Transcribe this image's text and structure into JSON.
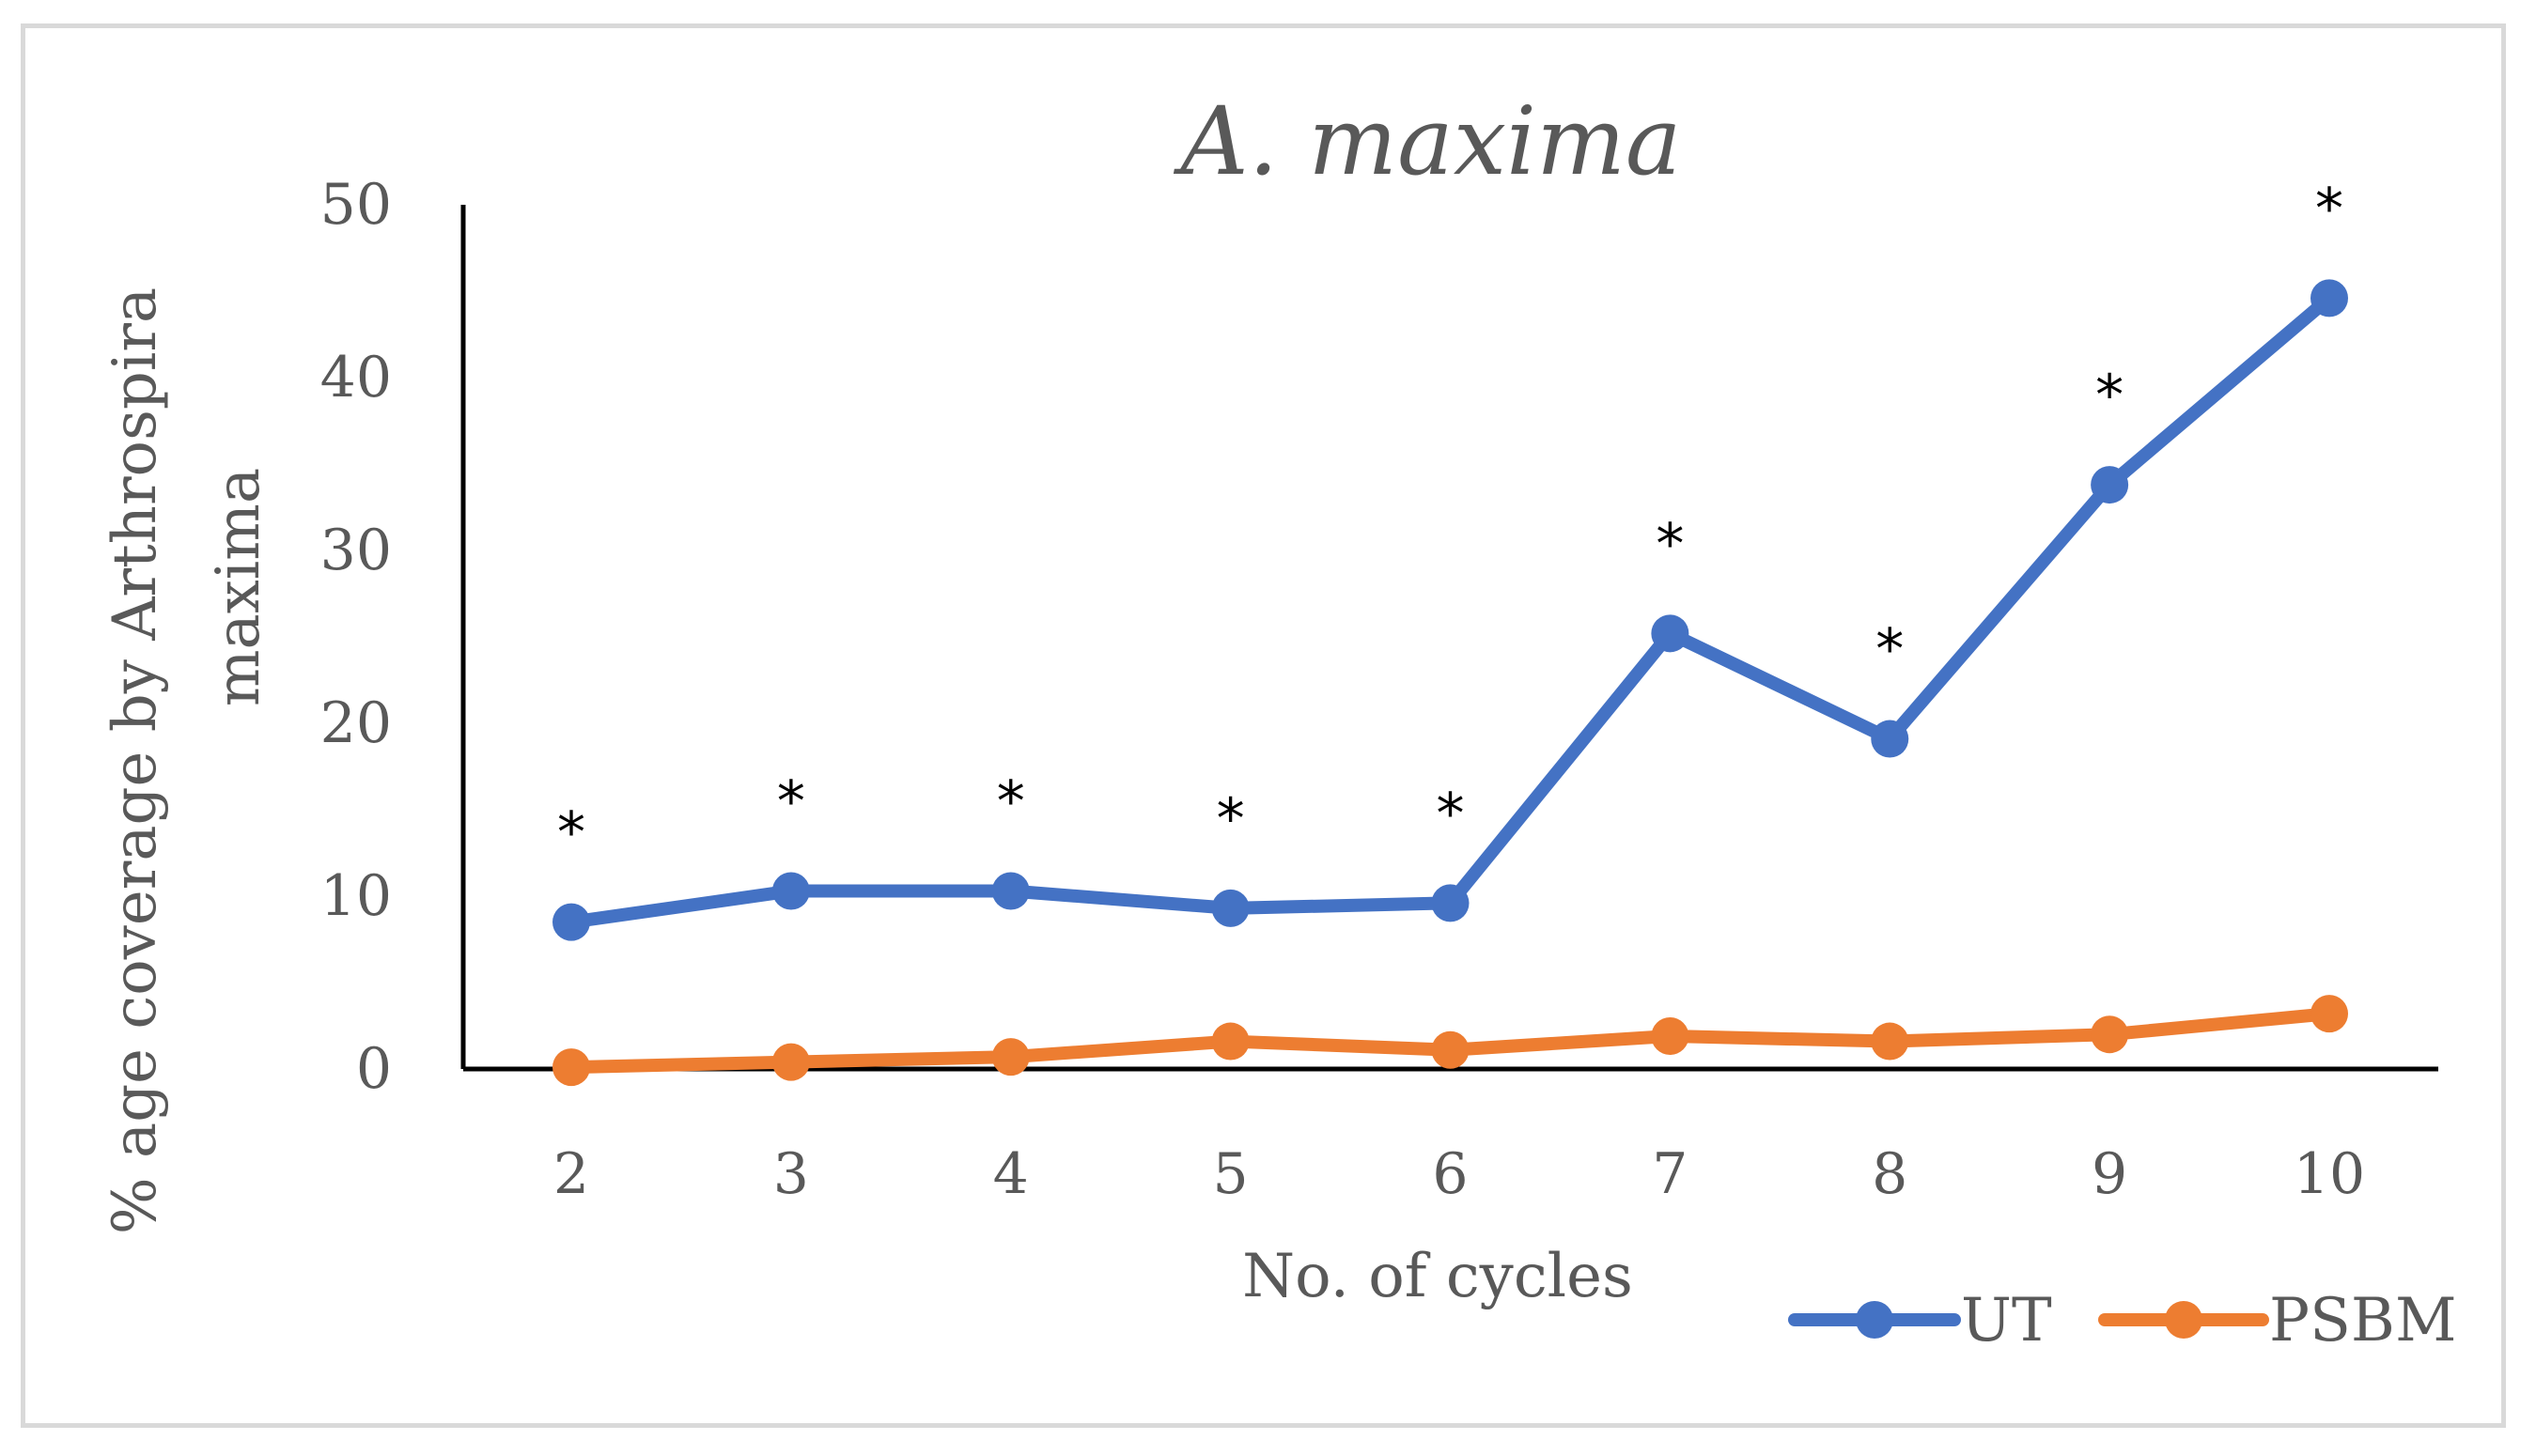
{
  "chart_data": {
    "type": "line",
    "title": "A. maxima",
    "xlabel": "No. of cycles",
    "ylabel_line1": "% age coverage by Arthrospira",
    "ylabel_line2": "maxima",
    "categories": [
      "2",
      "3",
      "4",
      "5",
      "6",
      "7",
      "8",
      "9",
      "10"
    ],
    "ylim": [
      0,
      50
    ],
    "yticks": [
      "0",
      "10",
      "20",
      "30",
      "40",
      "50"
    ],
    "series": [
      {
        "name": "UT",
        "color": "#4472c4",
        "values": [
          8.5,
          10.3,
          10.3,
          9.3,
          9.6,
          25.2,
          19.1,
          33.8,
          44.6
        ]
      },
      {
        "name": "PSBM",
        "color": "#ed7d31",
        "values": [
          0.1,
          0.4,
          0.7,
          1.6,
          1.1,
          1.9,
          1.6,
          2.0,
          3.2
        ]
      }
    ],
    "annotations": [
      "*",
      "*",
      "*",
      "*",
      "*",
      "*",
      "*",
      "*",
      "*"
    ],
    "legend_position": "bottom-right",
    "grid": false
  }
}
